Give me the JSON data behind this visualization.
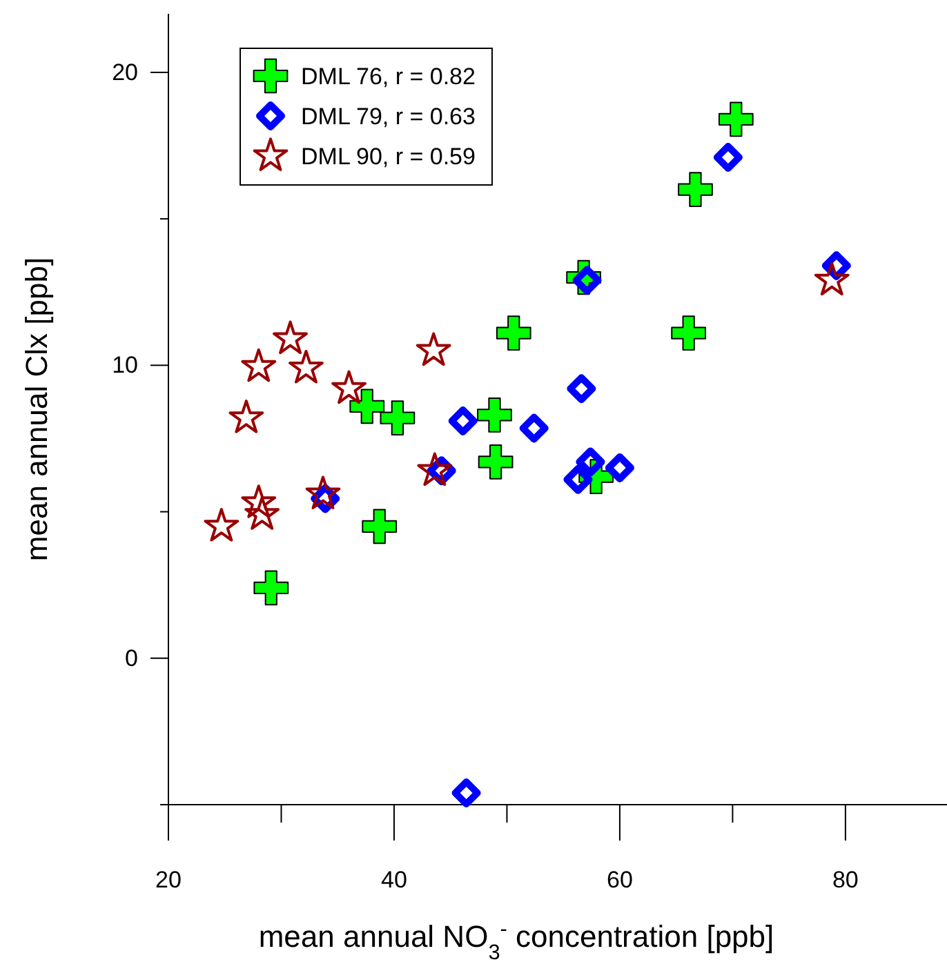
{
  "chart_data": {
    "type": "scatter",
    "xlabel": "mean annual NO$_{3}$$^{-}$ concentration [ppb]",
    "ylabel": "mean annual Clx [ppb]",
    "xlim": [
      20,
      89
    ],
    "xticks": [
      20,
      {
        "value": 30,
        "label": null
      },
      40,
      {
        "value": 50,
        "label": null
      },
      60,
      {
        "value": 70,
        "label": null
      },
      80
    ],
    "ylim": [
      -5,
      22
    ],
    "yticks": [
      {
        "value": -5,
        "label": null
      },
      0,
      {
        "value": 5,
        "label": null
      },
      10,
      {
        "value": 15,
        "label": null
      },
      20
    ],
    "grid": false,
    "legend": "top left",
    "series": [
      {
        "name": "DML 76, r = 0.82",
        "color": "#00ff00",
        "marker": "cross",
        "x": [
          70.3,
          66.7,
          56.8,
          50.6,
          66.1,
          37.6,
          40.3,
          48.9,
          49.0,
          57.9,
          38.7,
          29.1
        ],
        "values": [
          18.4,
          16.0,
          13.0,
          11.1,
          11.1,
          8.6,
          8.2,
          8.3,
          6.7,
          6.2,
          4.5,
          2.4
        ]
      },
      {
        "name": "DML 79, r = 0.63",
        "color": "#0000ff",
        "marker": "diamond",
        "x": [
          69.6,
          57.1,
          79.2,
          56.6,
          46.1,
          52.4,
          57.4,
          60.0,
          56.3,
          44.2,
          33.9,
          46.4
        ],
        "values": [
          17.1,
          12.9,
          13.4,
          9.2,
          8.1,
          7.85,
          6.7,
          6.5,
          6.1,
          6.4,
          5.45,
          -4.6
        ]
      },
      {
        "name": "DML 90, r = 0.59",
        "color": "#990000",
        "marker": "star",
        "x": [
          78.8,
          30.8,
          43.5,
          28.0,
          32.2,
          36.0,
          26.9,
          43.6,
          28.0,
          28.3,
          33.7,
          24.7
        ],
        "values": [
          12.9,
          10.9,
          10.5,
          9.95,
          9.9,
          9.2,
          8.2,
          6.4,
          5.3,
          4.9,
          5.6,
          4.5
        ]
      }
    ]
  }
}
